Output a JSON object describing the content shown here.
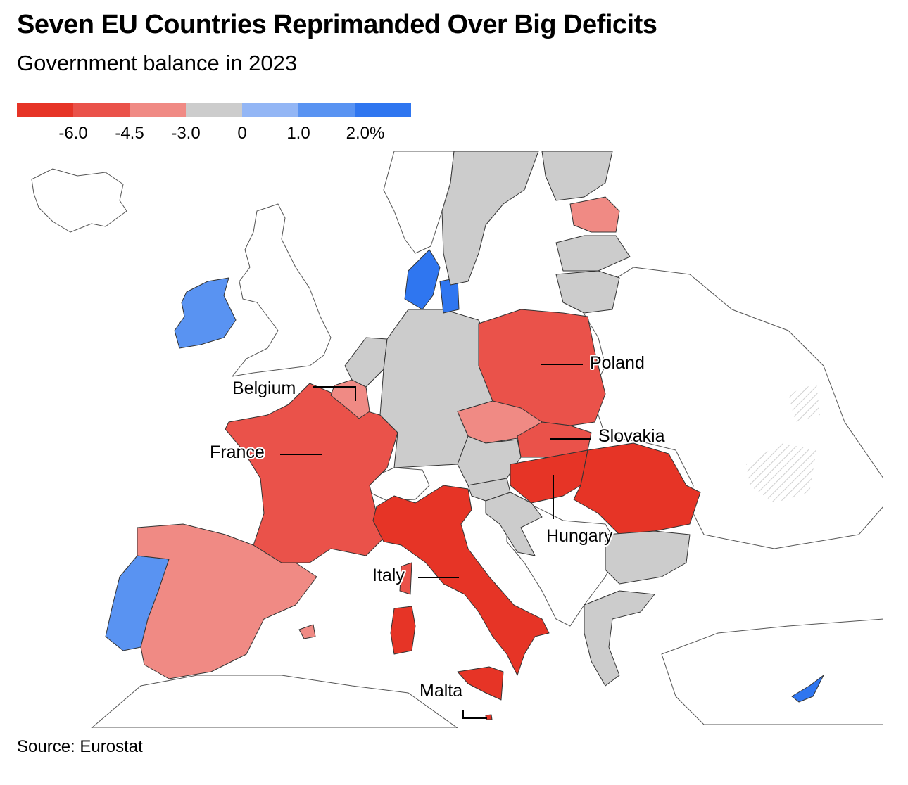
{
  "title": "Seven EU Countries Reprimanded Over Big Deficits",
  "subtitle": "Government balance in 2023",
  "legend": {
    "colors": [
      "#e63426",
      "#ea524a",
      "#f08a84",
      "#cccccc",
      "#93b6f5",
      "#5993f2",
      "#2f76f0"
    ],
    "labels": [
      "-6.0",
      "-4.5",
      "-3.0",
      "0",
      "1.0",
      "2.0%"
    ]
  },
  "map_labels": {
    "poland": "Poland",
    "belgium": "Belgium",
    "slovakia": "Slovakia",
    "france": "France",
    "hungary": "Hungary",
    "italy": "Italy",
    "malta": "Malta"
  },
  "colors": {
    "deep_red": "#e63426",
    "red": "#ea524a",
    "light_red": "#f08a84",
    "grey": "#cccccc",
    "blue": "#5993f2",
    "dark_blue": "#2f76f0"
  },
  "source": "Source: Eurostat"
}
